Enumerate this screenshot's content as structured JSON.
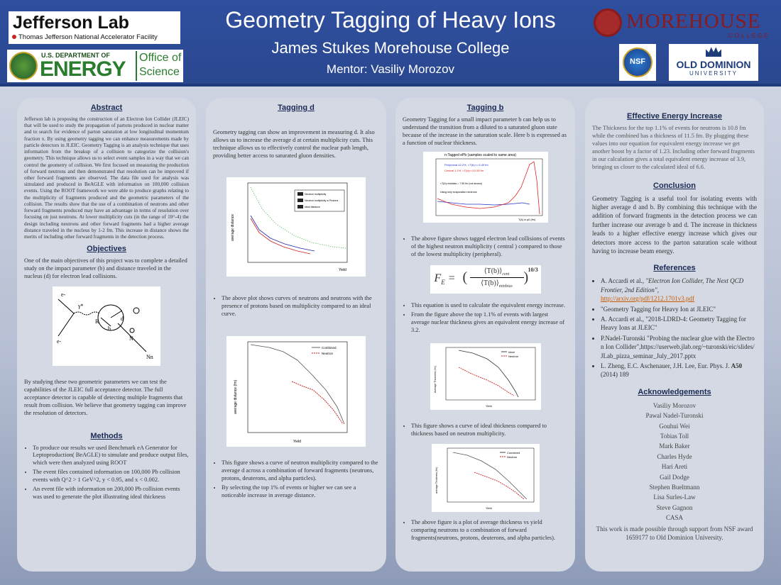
{
  "header": {
    "title": "Geometry Tagging of Heavy Ions",
    "subtitle": "James Stukes  Morehouse College",
    "mentor": "Mentor: Vasiliy Morozov"
  },
  "logos": {
    "jlab_name": "Jefferson Lab",
    "jlab_sub": "Thomas Jefferson National Accelerator Facility",
    "doe_top": "U.S. DEPARTMENT OF",
    "doe_big": "ENERGY",
    "doe_office1": "Office of",
    "doe_office2": "Science",
    "morehouse": "MOREHOUSE",
    "morehouse_sub": "COLLEGE",
    "nsf": "NSF",
    "odu1": "OLD DOMINION",
    "odu2": "UNIVERSITY"
  },
  "abstract": {
    "title": "Abstract",
    "text": "Jefferson lab is proposing  the construction of an Electron Ion Collider (JLEIC) that will be used  to study the propagation of partons produced in nuclear matter and to search for evidence of parton saturation at low longitudinal momentum fraction x. By using geometry tagging we can enhance measurements made by particle detectors in JLEIC. Geometry Tagging is an analysis  technique that uses information from the breakup of a collision to categorize the collision's geometry. This technique allows us to select event samples in a way that we can control the geometry of collision.  We first focused on measuring  the production of forward neutrons and then demonstrated   that resolution can be improved if other forward fragments are observed.  The data file used for analysis was simulated and produced in BeAGLE  with information on 100,000 collision events. Using the ROOT framework we were able to produce graphs relating to the multiplicity of fragments produced and the geometric parameters of the collision. The results show that the use of a combination of  neutrons and other forward fragments produced may have an advantage in terms of resolution over focusing on just neutrons. At lower multiplicity cuts (in the range of 10^-4) the design including neutrons and other forward fragments had a higher average distance traveled in the nucleus by 1-2 fm.  This increase in distance shows the merits of including other forward fragments in the detection process."
  },
  "objectives": {
    "title": "Objectives",
    "text1": "One of the main objectives of this project was to complete a detailed study on the impact parameter (b) and distance traveled in the nucleus (d) for electron lead collisions.",
    "text2": "By studying these two geometric parameters we can test the capabilities of the JLEIC full acceptance detector. The full acceptance detector is capable of detecting multiple fragments that result from collision. We believe that geometry tagging can improve the resolution of detectors.",
    "diagram_labels": [
      "e-",
      "e-",
      "γ*",
      "R",
      "b",
      "d",
      "N",
      "Nn"
    ]
  },
  "methods": {
    "title": "Methods",
    "items": [
      "To produce our results we used Benchmark eA Generator for Leptoproduction( BeAGLE) to simulate and produce output files, which were then analyzed using ROOT",
      "The event files contained information on 100,000  Pb collision events with Q^2 > 1 GeV^2,  y < 0.95, and x < 0.002.",
      "An event file with information on 200,000 Pb collision events was used to generate the plot illustrating  ideal thickness"
    ]
  },
  "tagging_d": {
    "title": "Tagging  d",
    "text": "Geometry tagging can show an improvement in measuring d. It also allows us to increase the average d at certain multiplicity cuts. This technique allows us to effectively control the nuclear path length, providing better access to saturated gluon densities.",
    "fig1_legend": [
      "Neutron multiplicity",
      "Neutron multiplicity w Protons",
      "ideal distance"
    ],
    "fig1_ylabel": "average distance",
    "fig1_xlabel": "Yield",
    "bullet1": "The above plot shows curves of neutrons and neutrons with the presence of protons based on multiplicity  compared to an ideal curve.",
    "fig2_legend": [
      "Combined",
      "Neutron"
    ],
    "fig2_ylabel": "average distance (fm)",
    "fig2_xlabel": "Yield",
    "bullets2": [
      "This figure shows a curve of neutron multiplicity compared to the average d across a combination of forward fragments (neutrons, protons, deuterons, and alpha particles).",
      "By selecting the top 1% of events or higher we can see a noticeable increase in average distance."
    ]
  },
  "tagging_b": {
    "title": "Tagging b",
    "text": "Geometry Tagging for a small impact parameter b can help us to understand the transition from a diluted to a saturated gluon state because of the increase in the saturation scale. Here b is expressed as a function of  nuclear thickness.",
    "hist_title": "n-Tagged ePb (samples scaled to same area)",
    "hist_legend": [
      "Peripheral 42.2%, <T(b)>= 6.49 fm",
      "Central  1.1%, <T(b)>=10.50 fm"
    ],
    "hist_note1": "<T(b)>minbias = 7.50 fm (not shown)",
    "hist_note2": "Using only evaporation neutrons",
    "hist_xlabel": "T(b) in ρ0 (fm)",
    "bullet1": "The above figure shows tagged electron lead collisions of events of the highest neutron multiplicity  ( central ) compared to those of the lowest multiplicity (peripheral).",
    "formula_lhs": "F",
    "formula_sub": "E",
    "formula_num": "⟨T(b)⟩",
    "formula_num_sub": "cent",
    "formula_den": "⟨T(b)⟩",
    "formula_den_sub": "minbias",
    "formula_exp": "10/3",
    "bullets2": [
      "This equation is used to calculate the equivalent energy increase.",
      "From the figure above the top 1.1% of events with largest average nuclear thickness gives an equivalent energy increase of 3.2."
    ],
    "fig3_legend": [
      "Ideal",
      "Neutron"
    ],
    "fig3_ylabel": "Average Thickness (fm)",
    "fig3_xlabel": "Yield",
    "bullet3": "This figure shows a curve of ideal thickness compared to thickness based on neutron multiplicity.",
    "fig4_legend": [
      "Combined",
      "Neutron"
    ],
    "fig4_ylabel": "average Thickness (fm)",
    "fig4_xlabel": "Yield",
    "bullet4": "The above figure is a plot of average thickness vs yield comparing neutrons to a combination of forward fragments(neutrons, protons, deuterons, and alpha particles)."
  },
  "effective": {
    "title": "Effective Energy Increase",
    "text": "The Thickness for the top 1.1% of events for neutrons is 10.8 fm while the combined has a thickness of 11.5 fm. By plugging these values into our equation for equivalent energy increase we get another boost by a factor of 1.23. Including other forward fragments in our calculation gives a total equivalent energy increase of 3.9, bringing us closer to the calculated ideal of 6.6."
  },
  "conclusion": {
    "title": "Conclusion",
    "text": "Geometry Tagging is a useful tool for isolating events with higher average d and b. By combining this technique with the addition of forward fragments in the detection process we can further increase our average b and d. The increase in thickness leads to a higher effective energy increase which gives our detectors more access to the parton saturation scale without having to increase beam energy."
  },
  "references": {
    "title": "References",
    "r1a": "A. Accardi et al., ",
    "r1b": "\"Electron Ion Collider, The Next QCD Frontier, 2nd Edition\"",
    "r1c": ",",
    "r1link": "http://arxiv.org/pdf/1212.1701v3.pdf",
    "r2": "\"Geometry  Tagging  for Heavy  Ion at JLEIC\"",
    "r3": "A. Accardi et al., \"2018-LDRD-4:  Geometry  Tagging  for Heavy  Ions at JLEIC\"",
    "r4": "P.Nadel-Turonski  \"Probing  the nuclear glue with the Electron Ion Collider\",https://userweb.jlab.org/~turonski/eic/slides/JLab_pizza_seminar_July_2017.pptx",
    "r5a": "L. Zheng, E.C. Aschenauer, J.H. Lee, Eur. Phys. J. ",
    "r5b": "A50",
    "r5c": " (2014) 189"
  },
  "acknowledgements": {
    "title": "Acknowledgements",
    "names": [
      "Vasiliy Morozov",
      "Pawal Nadel-Turonski",
      "Gouhui Wei",
      "Tobias Toll",
      "Mark Baker",
      "Charles Hyde",
      "Hari Areti",
      "Gail Dodge",
      "Stephen Bueltmann",
      "Lisa Surles-Law",
      "Steve Gagnon",
      "CASA"
    ],
    "support": "This work is made possible through support from NSF award 1659177 to Old Dominion University."
  },
  "colors": {
    "header": "#2f4f9f",
    "panel": "#d4d9e3",
    "section_title": "#1a2a55"
  }
}
